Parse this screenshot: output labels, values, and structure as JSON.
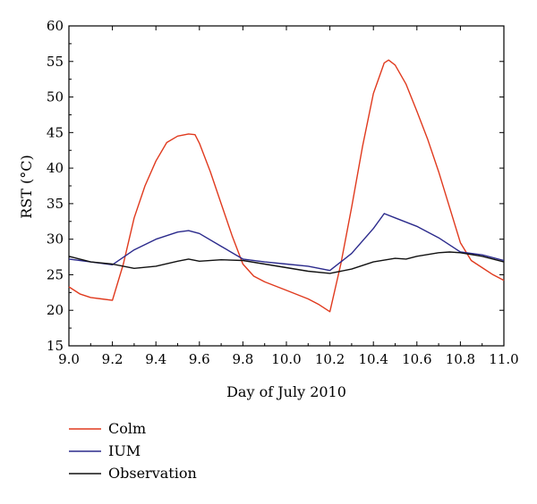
{
  "chart_data": {
    "type": "line",
    "title": "",
    "xlabel": "Day of July 2010",
    "ylabel": "RST (°C)",
    "xlim": [
      9.0,
      11.0
    ],
    "ylim": [
      15,
      60
    ],
    "xticks": [
      "9.0",
      "9.2",
      "9.4",
      "9.6",
      "9.8",
      "10.0",
      "10.2",
      "10.4",
      "10.6",
      "10.8",
      "11.0"
    ],
    "yticks": [
      "15",
      "20",
      "25",
      "30",
      "35",
      "40",
      "45",
      "50",
      "55",
      "60"
    ],
    "grid": false,
    "legend_position": "bottom-left",
    "series": [
      {
        "name": "Colm",
        "color": "#e03a1e",
        "x": [
          9.0,
          9.05,
          9.1,
          9.15,
          9.2,
          9.25,
          9.3,
          9.35,
          9.4,
          9.45,
          9.5,
          9.55,
          9.58,
          9.6,
          9.65,
          9.7,
          9.75,
          9.8,
          9.85,
          9.9,
          10.0,
          10.1,
          10.15,
          10.2,
          10.25,
          10.3,
          10.35,
          10.4,
          10.45,
          10.47,
          10.5,
          10.55,
          10.6,
          10.65,
          10.7,
          10.75,
          10.8,
          10.85,
          10.9,
          10.95,
          11.0
        ],
        "y": [
          23.3,
          22.3,
          21.8,
          21.6,
          21.4,
          26.5,
          33.0,
          37.5,
          41.0,
          43.6,
          44.5,
          44.8,
          44.7,
          43.5,
          39.5,
          35.0,
          30.5,
          26.5,
          24.8,
          24.0,
          22.8,
          21.6,
          20.8,
          19.8,
          26.5,
          34.5,
          43.0,
          50.5,
          54.8,
          55.2,
          54.5,
          51.8,
          48.0,
          44.0,
          39.5,
          34.5,
          29.5,
          27.0,
          26.0,
          25.0,
          24.2
        ]
      },
      {
        "name": "IUM",
        "color": "#2b2a8c",
        "x": [
          9.0,
          9.1,
          9.2,
          9.3,
          9.4,
          9.5,
          9.55,
          9.6,
          9.7,
          9.8,
          9.9,
          10.0,
          10.1,
          10.2,
          10.3,
          10.4,
          10.45,
          10.5,
          10.6,
          10.7,
          10.8,
          10.9,
          11.0
        ],
        "y": [
          27.2,
          26.8,
          26.4,
          28.5,
          30.0,
          31.0,
          31.2,
          30.8,
          29.0,
          27.2,
          26.8,
          26.5,
          26.2,
          25.6,
          28.0,
          31.5,
          33.6,
          33.0,
          31.8,
          30.2,
          28.2,
          27.8,
          27.0
        ]
      },
      {
        "name": "Observation",
        "color": "#111111",
        "x": [
          9.0,
          9.1,
          9.2,
          9.3,
          9.4,
          9.5,
          9.55,
          9.6,
          9.7,
          9.8,
          9.9,
          10.0,
          10.1,
          10.2,
          10.3,
          10.4,
          10.5,
          10.55,
          10.6,
          10.7,
          10.75,
          10.8,
          10.9,
          11.0
        ],
        "y": [
          27.6,
          26.8,
          26.5,
          25.9,
          26.2,
          26.9,
          27.2,
          26.9,
          27.1,
          27.0,
          26.5,
          26.0,
          25.5,
          25.2,
          25.8,
          26.8,
          27.3,
          27.2,
          27.6,
          28.1,
          28.2,
          28.1,
          27.6,
          26.8
        ]
      }
    ]
  }
}
